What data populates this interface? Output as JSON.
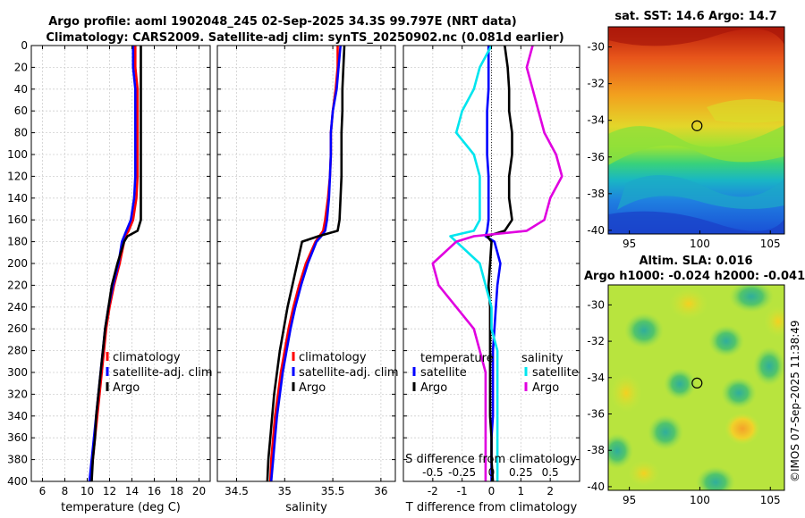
{
  "titles": {
    "line1": "Argo profile: aoml 1902048_245 02-Sep-2025 34.3S 99.797E (NRT data)",
    "line2": "Climatology: CARS2009. Satellite-adj clim: synTS_20250902.nc (0.081d earlier)"
  },
  "stamp": "©IMOS 07-Sep-2025 11:38:49",
  "colors": {
    "climatology": "#ff0000",
    "satellite": "#0000ff",
    "argo": "#000000",
    "sat_salinity": "#00e5ee",
    "argo_salinity": "#e000e0"
  },
  "chart_data": [
    {
      "type": "line",
      "name": "temperature",
      "xlabel": "temperature (deg C)",
      "ylabel": "",
      "xlim": [
        5,
        21
      ],
      "ylim": [
        400,
        0
      ],
      "xticks": [
        "6",
        "8",
        "10",
        "12",
        "14",
        "16",
        "18",
        "20"
      ],
      "yticks": [
        "0",
        "20",
        "40",
        "60",
        "80",
        "100",
        "120",
        "140",
        "160",
        "180",
        "200",
        "220",
        "240",
        "260",
        "280",
        "300",
        "320",
        "340",
        "360",
        "380",
        "400"
      ],
      "legend": [
        "climatology",
        "satellite-adj. clim",
        "Argo"
      ],
      "depth": [
        0,
        20,
        40,
        60,
        80,
        100,
        120,
        140,
        160,
        170,
        175,
        180,
        200,
        220,
        240,
        260,
        280,
        300,
        320,
        340,
        360,
        380,
        400
      ],
      "series": [
        {
          "name": "climatology",
          "values": [
            14.3,
            14.3,
            14.5,
            14.5,
            14.5,
            14.5,
            14.5,
            14.4,
            14.1,
            13.7,
            13.4,
            13.3,
            12.9,
            12.4,
            12.0,
            11.7,
            11.5,
            11.3,
            11.1,
            10.9,
            10.7,
            10.5,
            10.3
          ]
        },
        {
          "name": "satellite-adj. clim",
          "values": [
            14.1,
            14.1,
            14.3,
            14.3,
            14.3,
            14.3,
            14.3,
            14.2,
            13.9,
            13.5,
            13.3,
            13.1,
            12.8,
            12.3,
            11.9,
            11.6,
            11.4,
            11.2,
            11.0,
            10.8,
            10.6,
            10.4,
            10.2
          ]
        },
        {
          "name": "Argo",
          "values": [
            14.8,
            14.8,
            14.8,
            14.8,
            14.8,
            14.8,
            14.8,
            14.8,
            14.8,
            14.5,
            13.6,
            13.3,
            12.7,
            12.2,
            11.9,
            11.6,
            11.4,
            11.2,
            11.0,
            10.8,
            10.7,
            10.5,
            10.4
          ]
        }
      ]
    },
    {
      "type": "line",
      "name": "salinity",
      "xlabel": "salinity",
      "xlim": [
        34.3,
        36.15
      ],
      "ylim": [
        400,
        0
      ],
      "xticks": [
        "34.5",
        "35",
        "35.5",
        "36"
      ],
      "legend": [
        "climatology",
        "satellite-adj. clim",
        "Argo"
      ],
      "depth": [
        0,
        20,
        40,
        60,
        80,
        100,
        120,
        140,
        160,
        170,
        175,
        180,
        200,
        220,
        240,
        260,
        280,
        300,
        320,
        340,
        360,
        380,
        400
      ],
      "series": [
        {
          "name": "climatology",
          "values": [
            35.55,
            35.55,
            35.53,
            35.5,
            35.48,
            35.48,
            35.47,
            35.45,
            35.42,
            35.4,
            35.36,
            35.32,
            35.22,
            35.15,
            35.09,
            35.04,
            35.0,
            34.96,
            34.93,
            34.9,
            34.88,
            34.86,
            34.85
          ]
        },
        {
          "name": "satellite-adj. clim",
          "values": [
            35.58,
            35.56,
            35.54,
            35.5,
            35.48,
            35.48,
            35.47,
            35.46,
            35.44,
            35.42,
            35.38,
            35.33,
            35.24,
            35.17,
            35.11,
            35.06,
            35.02,
            34.98,
            34.95,
            34.92,
            34.9,
            34.88,
            34.86
          ]
        },
        {
          "name": "Argo",
          "values": [
            35.62,
            35.61,
            35.6,
            35.6,
            35.59,
            35.59,
            35.59,
            35.58,
            35.57,
            35.55,
            35.35,
            35.18,
            35.13,
            35.08,
            35.03,
            34.99,
            34.95,
            34.92,
            34.89,
            34.87,
            34.85,
            34.83,
            34.82
          ]
        }
      ]
    },
    {
      "type": "line",
      "name": "difference",
      "xlabel": "T difference from climatology",
      "xlabel_top": "S difference from climatology",
      "xlim": [
        -3,
        3
      ],
      "ylim": [
        400,
        0
      ],
      "xticks": [
        "-2",
        "-1",
        "0",
        "1",
        "2"
      ],
      "xticks_top": [
        "-0.5",
        "-0.25",
        "0",
        "0.25",
        "0.5"
      ],
      "legend_groups": {
        "temperature": "temperature",
        "salinity": "salinity"
      },
      "legend": [
        "satellite",
        "Argo",
        "satellite",
        "Argo"
      ],
      "depth": [
        0,
        20,
        40,
        60,
        80,
        100,
        120,
        140,
        160,
        170,
        175,
        180,
        200,
        220,
        240,
        260,
        280,
        300,
        320,
        340,
        360,
        380,
        400
      ],
      "series": [
        {
          "name": "T satellite",
          "values": [
            -0.1,
            -0.1,
            -0.1,
            -0.15,
            -0.15,
            -0.15,
            -0.1,
            -0.1,
            -0.1,
            -0.15,
            -0.2,
            0.1,
            0.3,
            0.2,
            0.15,
            0.1,
            0.05,
            0.05,
            0.05,
            0.05,
            0.0,
            0.0,
            0.0
          ]
        },
        {
          "name": "T Argo",
          "values": [
            0.45,
            0.55,
            0.6,
            0.6,
            0.7,
            0.7,
            0.6,
            0.6,
            0.7,
            0.45,
            -0.15,
            0.0,
            -0.05,
            -0.1,
            -0.05,
            -0.05,
            -0.05,
            -0.05,
            -0.05,
            -0.05,
            0.0,
            0.0,
            0.05
          ]
        },
        {
          "name": "S satellite",
          "values": [
            0.0,
            -0.1,
            -0.15,
            -0.25,
            -0.3,
            -0.15,
            -0.1,
            -0.1,
            -0.1,
            -0.15,
            -0.35,
            -0.3,
            -0.1,
            -0.05,
            0.0,
            0.0,
            0.05,
            0.05,
            0.05,
            0.05,
            0.05,
            0.05,
            0.05
          ]
        },
        {
          "name": "S Argo",
          "values": [
            0.35,
            0.3,
            0.35,
            0.4,
            0.45,
            0.55,
            0.6,
            0.5,
            0.45,
            0.3,
            -0.15,
            -0.3,
            -0.5,
            -0.45,
            -0.3,
            -0.15,
            -0.1,
            -0.05,
            -0.05,
            -0.05,
            -0.05,
            -0.05,
            -0.05
          ]
        }
      ]
    },
    {
      "type": "heatmap",
      "name": "sst-map",
      "title": "sat. SST: 14.6 Argo: 14.7",
      "xticks": [
        "95",
        "100",
        "105"
      ],
      "yticks": [
        "-30",
        "-32",
        "-34",
        "-36",
        "-38",
        "-40"
      ],
      "xlim": [
        93.5,
        106
      ],
      "ylim": [
        -40.2,
        -28.9
      ],
      "marker": {
        "lon": 99.8,
        "lat": -34.3
      }
    },
    {
      "type": "heatmap",
      "name": "sla-map",
      "title": "Altim. SLA: 0.016",
      "subtitle": "Argo h1000: -0.024 h2000: -0.041",
      "xticks": [
        "95",
        "100",
        "105"
      ],
      "yticks": [
        "-30",
        "-32",
        "-34",
        "-36",
        "-38",
        "-40"
      ],
      "xlim": [
        93.5,
        106
      ],
      "ylim": [
        -40.2,
        -28.9
      ],
      "marker": {
        "lon": 99.8,
        "lat": -34.3
      }
    }
  ]
}
